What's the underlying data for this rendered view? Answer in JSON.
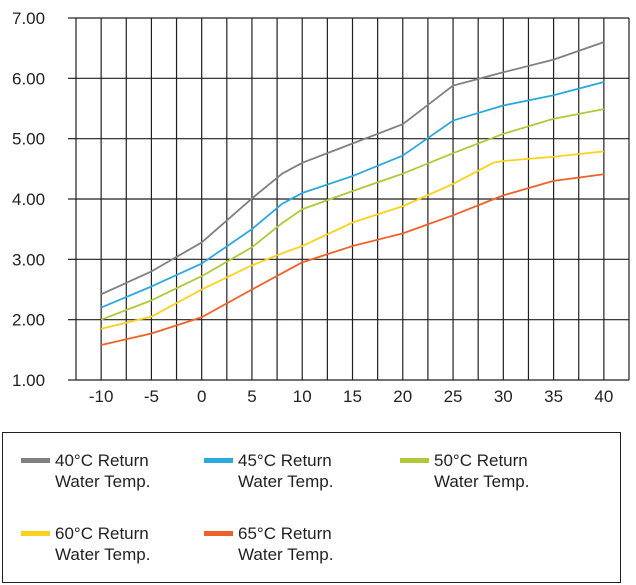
{
  "chart_data": {
    "type": "line",
    "title": "",
    "xlabel": "",
    "ylabel": "",
    "xlim": [
      -12.5,
      42.5
    ],
    "ylim": [
      1.0,
      7.0
    ],
    "x_ticks": [
      "-10",
      "-5",
      "0",
      "5",
      "10",
      "15",
      "20",
      "25",
      "30",
      "35",
      "40"
    ],
    "y_ticks": [
      "1.00",
      "2.00",
      "3.00",
      "4.00",
      "5.00",
      "6.00",
      "7.00"
    ],
    "grid": true,
    "legend_position": "bottom",
    "series": [
      {
        "name": "40°C Return Water Temp.",
        "color": "#808083",
        "x": [
          -10,
          -5,
          0,
          5,
          8,
          10,
          15,
          20,
          25,
          30,
          35,
          40
        ],
        "y": [
          2.42,
          2.8,
          3.28,
          4.01,
          4.42,
          4.6,
          4.92,
          5.24,
          5.88,
          6.1,
          6.31,
          6.6
        ]
      },
      {
        "name": "45°C Return Water Temp.",
        "color": "#2ba9dd",
        "x": [
          -10,
          -5,
          0,
          5,
          8,
          10,
          15,
          20,
          25,
          30,
          35,
          40
        ],
        "y": [
          2.2,
          2.55,
          2.93,
          3.5,
          3.92,
          4.1,
          4.38,
          4.72,
          5.3,
          5.55,
          5.72,
          5.94
        ]
      },
      {
        "name": "50°C Return Water Temp.",
        "color": "#b0c93a",
        "x": [
          -10,
          -5,
          0,
          5,
          8,
          10,
          15,
          20,
          25,
          30,
          35,
          40
        ],
        "y": [
          2.0,
          2.32,
          2.72,
          3.2,
          3.6,
          3.83,
          4.13,
          4.42,
          4.76,
          5.08,
          5.33,
          5.49
        ]
      },
      {
        "name": "60°C Return Water Temp.",
        "color": "#fbd21a",
        "x": [
          -10,
          -5,
          0,
          5,
          8,
          10,
          15,
          20,
          25,
          29,
          30,
          35,
          40
        ],
        "y": [
          1.85,
          2.05,
          2.5,
          2.9,
          3.1,
          3.22,
          3.61,
          3.88,
          4.25,
          4.6,
          4.63,
          4.7,
          4.79
        ]
      },
      {
        "name": "65°C Return Water Temp.",
        "color": "#ef6129",
        "x": [
          -10,
          -5,
          0,
          5,
          10,
          15,
          20,
          25,
          30,
          35,
          40
        ],
        "y": [
          1.58,
          1.77,
          2.04,
          2.5,
          2.95,
          3.22,
          3.43,
          3.73,
          4.06,
          4.3,
          4.41
        ]
      }
    ]
  },
  "legend": [
    {
      "line1": "40°C Return",
      "line2": "Water Temp.",
      "color": "#808083"
    },
    {
      "line1": "45°C Return",
      "line2": "Water Temp.",
      "color": "#2ba9dd"
    },
    {
      "line1": "50°C Return",
      "line2": "Water Temp.",
      "color": "#b0c93a"
    },
    {
      "line1": "60°C Return",
      "line2": "Water Temp.",
      "color": "#fbd21a"
    },
    {
      "line1": "65°C Return",
      "line2": "Water Temp.",
      "color": "#ef6129"
    }
  ]
}
